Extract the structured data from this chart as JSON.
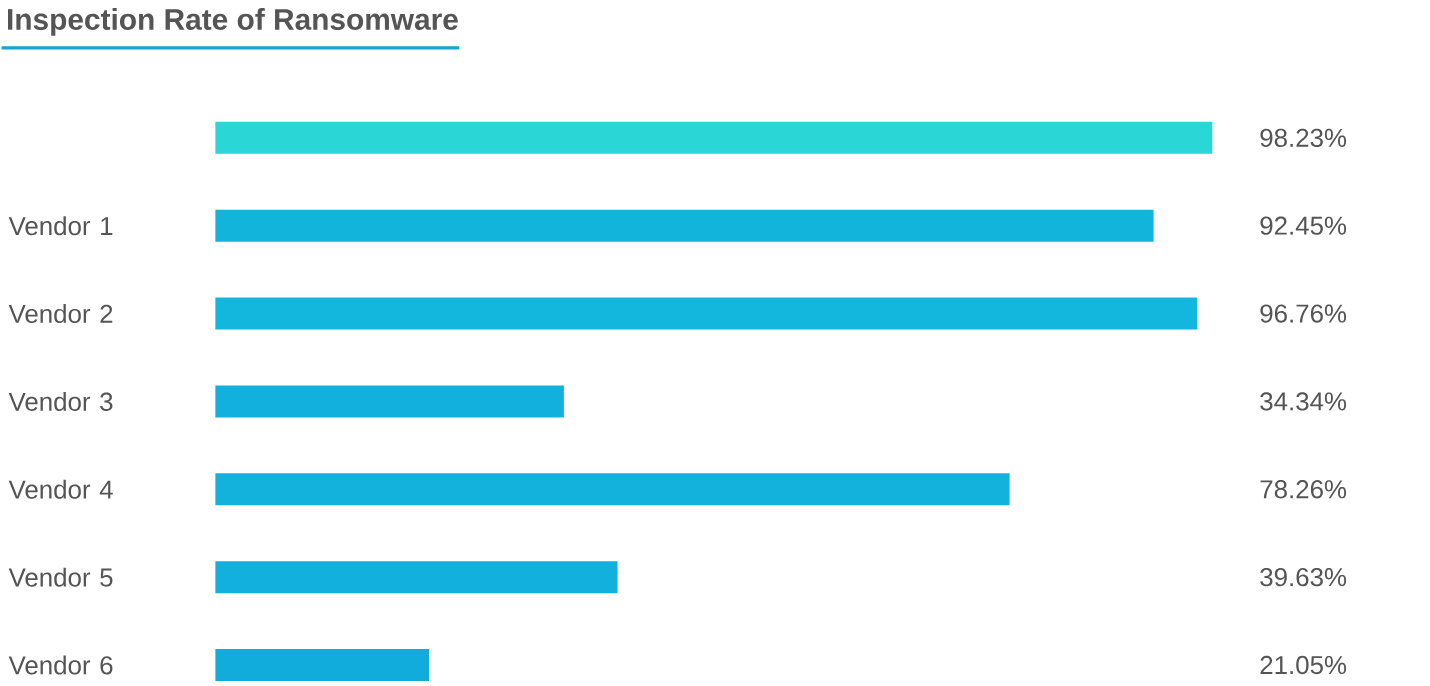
{
  "chart_data": {
    "type": "bar",
    "orientation": "horizontal",
    "title": "Inspection Rate of Ransomware",
    "categories": [
      null,
      "Vendor 1",
      "Vendor 2",
      "Vendor 3",
      "Vendor 4",
      "Vendor 5",
      "Vendor 6"
    ],
    "values": [
      98.23,
      92.45,
      96.76,
      34.34,
      78.26,
      39.63,
      21.05
    ],
    "value_labels": [
      "98.23%",
      "92.45%",
      "96.76%",
      "34.34%",
      "78.26%",
      "39.63%",
      "21.05%"
    ],
    "colors": [
      "#2ad6d6",
      "#13b4dc",
      "#13b6dc",
      "#12b0dc",
      "#12b2dc",
      "#12b0dc",
      "#12acdc"
    ],
    "tick_labels": "y"
  }
}
